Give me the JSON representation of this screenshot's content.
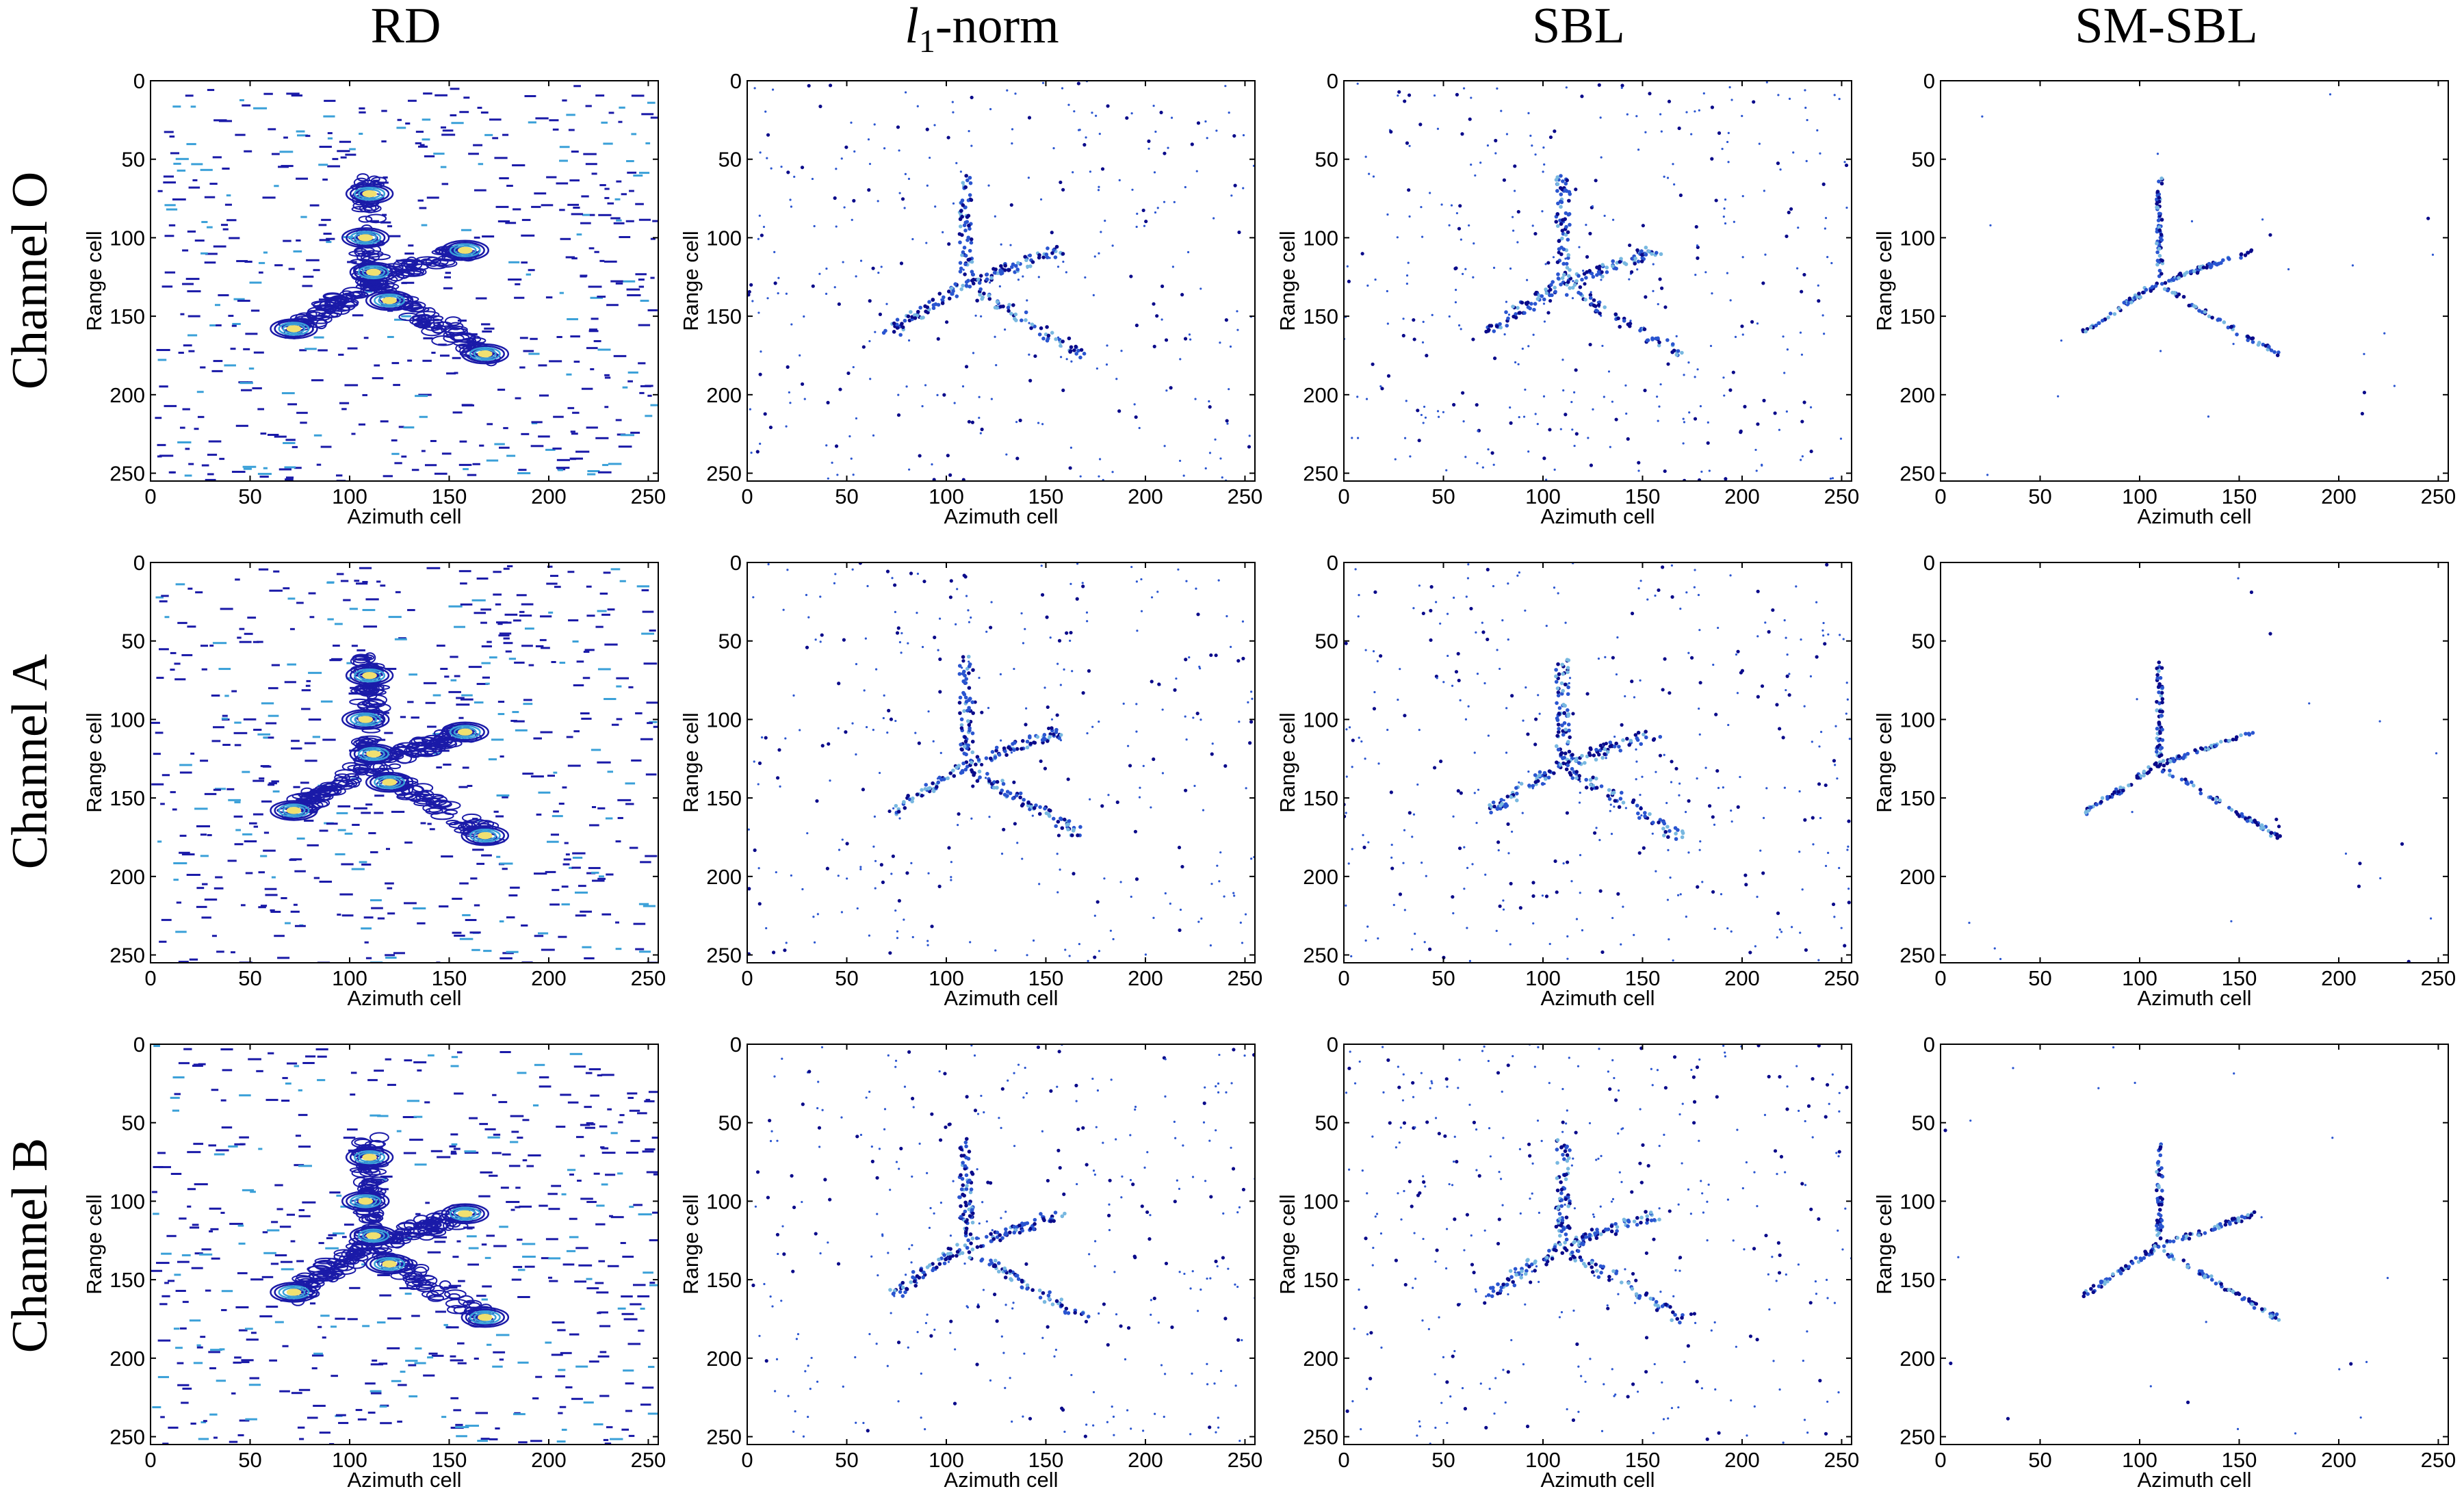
{
  "figure": {
    "column_titles": [
      "RD",
      "-norm",
      "SBL",
      "SM-SBL"
    ],
    "l1_symbol": "l",
    "l1_subscript": "1",
    "row_titles": [
      "Channel O",
      "Channel A",
      "Channel B"
    ],
    "colors": {
      "background": "#ffffff",
      "axes": "#000000",
      "contour_low": "#1a1aa8",
      "contour_mid": "#3aa0d8",
      "contour_high": "#f0e070",
      "point_dark": "#0a0a8a",
      "point_blue": "#2a55d0",
      "point_light": "#78b8e0"
    }
  },
  "chart_data": [
    {
      "type": "heatmap",
      "method": "RD",
      "channel": "Channel O",
      "xlabel": "Azimuth cell",
      "ylabel": "Range cell",
      "xlim": [
        0,
        255
      ],
      "ylim": [
        255,
        0
      ],
      "xticks": [
        0,
        50,
        100,
        150,
        200,
        250
      ],
      "yticks": [
        0,
        50,
        100,
        150,
        200,
        250
      ]
    },
    {
      "type": "scatter",
      "method": "l1-norm",
      "channel": "Channel O",
      "xlabel": "Azimuth cell",
      "ylabel": "Range cell",
      "xlim": [
        0,
        255
      ],
      "ylim": [
        255,
        0
      ],
      "xticks": [
        0,
        50,
        100,
        150,
        200,
        250
      ],
      "yticks": [
        0,
        50,
        100,
        150,
        200,
        250
      ]
    },
    {
      "type": "scatter",
      "method": "SBL",
      "channel": "Channel O",
      "xlabel": "Azimuth cell",
      "ylabel": "Range cell",
      "xlim": [
        0,
        255
      ],
      "ylim": [
        255,
        0
      ],
      "xticks": [
        0,
        50,
        100,
        150,
        200,
        250
      ],
      "yticks": [
        0,
        50,
        100,
        150,
        200,
        250
      ]
    },
    {
      "type": "scatter",
      "method": "SM-SBL",
      "channel": "Channel O",
      "xlabel": "Azimuth cell",
      "ylabel": "Range cell",
      "xlim": [
        0,
        255
      ],
      "ylim": [
        255,
        0
      ],
      "xticks": [
        0,
        50,
        100,
        150,
        200,
        250
      ],
      "yticks": [
        0,
        50,
        100,
        150,
        200,
        250
      ]
    },
    {
      "type": "heatmap",
      "method": "RD",
      "channel": "Channel A",
      "xlabel": "Azimuth cell",
      "ylabel": "Range cell",
      "xlim": [
        0,
        255
      ],
      "ylim": [
        255,
        0
      ],
      "xticks": [
        0,
        50,
        100,
        150,
        200,
        250
      ],
      "yticks": [
        0,
        50,
        100,
        150,
        200,
        250
      ]
    },
    {
      "type": "scatter",
      "method": "l1-norm",
      "channel": "Channel A",
      "xlabel": "Azimuth cell",
      "ylabel": "Range cell",
      "xlim": [
        0,
        255
      ],
      "ylim": [
        255,
        0
      ],
      "xticks": [
        0,
        50,
        100,
        150,
        200,
        250
      ],
      "yticks": [
        0,
        50,
        100,
        150,
        200,
        250
      ]
    },
    {
      "type": "scatter",
      "method": "SBL",
      "channel": "Channel A",
      "xlabel": "Azimuth cell",
      "ylabel": "Range cell",
      "xlim": [
        0,
        255
      ],
      "ylim": [
        255,
        0
      ],
      "xticks": [
        0,
        50,
        100,
        150,
        200,
        250
      ],
      "yticks": [
        0,
        50,
        100,
        150,
        200,
        250
      ]
    },
    {
      "type": "scatter",
      "method": "SM-SBL",
      "channel": "Channel A",
      "xlabel": "Azimuth cell",
      "ylabel": "Range cell",
      "xlim": [
        0,
        255
      ],
      "ylim": [
        255,
        0
      ],
      "xticks": [
        0,
        50,
        100,
        150,
        200,
        250
      ],
      "yticks": [
        0,
        50,
        100,
        150,
        200,
        250
      ]
    },
    {
      "type": "heatmap",
      "method": "RD",
      "channel": "Channel B",
      "xlabel": "Azimuth cell",
      "ylabel": "Range cell",
      "xlim": [
        0,
        255
      ],
      "ylim": [
        255,
        0
      ],
      "xticks": [
        0,
        50,
        100,
        150,
        200,
        250
      ],
      "yticks": [
        0,
        50,
        100,
        150,
        200,
        250
      ]
    },
    {
      "type": "scatter",
      "method": "l1-norm",
      "channel": "Channel B",
      "xlabel": "Azimuth cell",
      "ylabel": "Range cell",
      "xlim": [
        0,
        255
      ],
      "ylim": [
        255,
        0
      ],
      "xticks": [
        0,
        50,
        100,
        150,
        200,
        250
      ],
      "yticks": [
        0,
        50,
        100,
        150,
        200,
        250
      ]
    },
    {
      "type": "scatter",
      "method": "SBL",
      "channel": "Channel B",
      "xlabel": "Azimuth cell",
      "ylabel": "Range cell",
      "xlim": [
        0,
        255
      ],
      "ylim": [
        255,
        0
      ],
      "xticks": [
        0,
        50,
        100,
        150,
        200,
        250
      ],
      "yticks": [
        0,
        50,
        100,
        150,
        200,
        250
      ]
    },
    {
      "type": "scatter",
      "method": "SM-SBL",
      "channel": "Channel B",
      "xlabel": "Azimuth cell",
      "ylabel": "Range cell",
      "xlim": [
        0,
        255
      ],
      "ylim": [
        255,
        0
      ],
      "xticks": [
        0,
        50,
        100,
        150,
        200,
        250
      ],
      "yticks": [
        0,
        50,
        100,
        150,
        200,
        250
      ]
    }
  ],
  "target_structure": {
    "description_units": "Azimuth cell / Range cell (data units)",
    "arms": [
      {
        "name": "upper-arm",
        "from": [
          110,
          125
        ],
        "to": [
          110,
          62
        ]
      },
      {
        "name": "left-arm",
        "from": [
          110,
          128
        ],
        "to": [
          72,
          160
        ]
      },
      {
        "name": "right-arm",
        "from": [
          112,
          128
        ],
        "to": [
          158,
          108
        ]
      },
      {
        "name": "lower-right-arm",
        "from": [
          112,
          132
        ],
        "to": [
          170,
          175
        ]
      }
    ],
    "blobs": [
      {
        "name": "nose",
        "x": 110,
        "y": 72
      },
      {
        "name": "center-upper",
        "x": 108,
        "y": 100
      },
      {
        "name": "center",
        "x": 112,
        "y": 122
      },
      {
        "name": "center-lower",
        "x": 120,
        "y": 140
      },
      {
        "name": "right-wing-tip",
        "x": 158,
        "y": 108
      },
      {
        "name": "left-wing-tip",
        "x": 72,
        "y": 158
      },
      {
        "name": "lower-right-tip",
        "x": 168,
        "y": 174
      }
    ]
  }
}
